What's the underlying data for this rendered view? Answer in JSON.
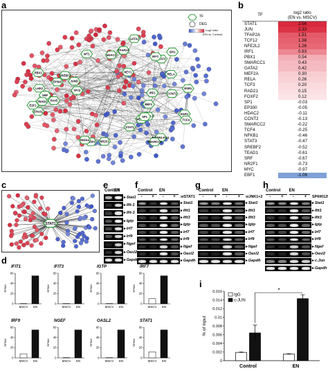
{
  "panels": {
    "a": "a",
    "b": "b",
    "c": "c",
    "d": "d",
    "e": "e",
    "f": "f",
    "g": "g",
    "h": "h",
    "i": "i"
  },
  "network_legend": {
    "tf": "TF",
    "deg": "DEG",
    "ratio_label_1": "Log2 ratio",
    "ratio_label_2": "(EN vs. Control)"
  },
  "network_a_labels": [
    "TP73",
    "EWSR1-FLI1",
    "NFE2L2",
    "PBX1",
    "EPAS1",
    "RELA",
    "IRF1",
    "E2F1",
    "STAT3",
    "LHX2",
    "FOXA1",
    "EGR1",
    "MEF2A",
    "SRF",
    "CCNT2",
    "ESR1",
    "GATA2",
    "WT1",
    "MYC",
    "TFAP2A",
    "TCF4",
    "SP1",
    "STAT1",
    "HEY1",
    "EP300",
    "JUND",
    "EBF1",
    "HDAC2",
    "NR2F1",
    "SREBF2",
    "PAX5",
    "SMARCC1",
    "FOXF2",
    "TEAD1",
    "SPI1",
    "HNF4A"
  ],
  "network_c_center": "STAT1",
  "table_b": {
    "col_tf": "TF",
    "col_ratio": "log2 ratio",
    "col_ratio_sub": "(EN vs. MSCV)",
    "rows": [
      {
        "tf": "STAT1",
        "v": "2.56",
        "c": "#d9293e"
      },
      {
        "tf": "JUN",
        "v": "2.33",
        "c": "#dc3447"
      },
      {
        "tf": "TFAP2A",
        "v": "1.51",
        "c": "#e55a69"
      },
      {
        "tf": "TCF12",
        "v": "1.38",
        "c": "#e6616f"
      },
      {
        "tf": "NFE2L2",
        "v": "1.26",
        "c": "#e86876"
      },
      {
        "tf": "IRF1",
        "v": "0.93",
        "c": "#ed8792"
      },
      {
        "tf": "PBX1",
        "v": "0.54",
        "c": "#f3aeb6"
      },
      {
        "tf": "SMARCC1",
        "v": "0.43",
        "c": "#f5bac1"
      },
      {
        "tf": "GATA2",
        "v": "0.42",
        "c": "#f5bbc2"
      },
      {
        "tf": "MEF2A",
        "v": "0.30",
        "c": "#f8cdd2"
      },
      {
        "tf": "RELA",
        "v": "0.26",
        "c": "#f9d2d6"
      },
      {
        "tf": "TCF3",
        "v": "0.20",
        "c": "#fadadd"
      },
      {
        "tf": "RAD21",
        "v": "0.15",
        "c": "#fbe0e3"
      },
      {
        "tf": "FOXF2",
        "v": "0.12",
        "c": "#fce5e7"
      },
      {
        "tf": "SP1",
        "v": "-0.03",
        "c": "#ffffff"
      },
      {
        "tf": "EP300",
        "v": "-0.05",
        "c": "#ffffff"
      },
      {
        "tf": "HDAC2",
        "v": "-0.11",
        "c": "#ffffff"
      },
      {
        "tf": "CCNT2",
        "v": "-0.13",
        "c": "#ffffff"
      },
      {
        "tf": "SMARCC2",
        "v": "-0.22",
        "c": "#ffffff"
      },
      {
        "tf": "TCF4",
        "v": "-0.25",
        "c": "#ffffff"
      },
      {
        "tf": "NFKB1",
        "v": "-0.46",
        "c": "#ffffff"
      },
      {
        "tf": "STAT3",
        "v": "-0.47",
        "c": "#ffffff"
      },
      {
        "tf": "SREBF2",
        "v": "-0.52",
        "c": "#ffffff"
      },
      {
        "tf": "TEAD1",
        "v": "-0.61",
        "c": "#ffffff"
      },
      {
        "tf": "SRF",
        "v": "-0.67",
        "c": "#ffffff"
      },
      {
        "tf": "NR2F1",
        "v": "-0.73",
        "c": "#ffffff"
      },
      {
        "tf": "MYC",
        "v": "-0.97",
        "c": "#ffffff"
      },
      {
        "tf": "EBF1",
        "v": "-1.06",
        "c": "#7fa1d6"
      }
    ]
  },
  "gel_e": {
    "headers": [
      "Control",
      "EN"
    ],
    "genes": [
      "Stat1",
      "Ifit-1",
      "Ifit-3",
      "Igtp",
      "Irf7",
      "Irf9",
      "Ngef",
      "Oasl2",
      "Gapdh"
    ],
    "lanes": 2,
    "intensity": [
      [
        0.7,
        0.95
      ],
      [
        0.15,
        0.85
      ],
      [
        0.2,
        0.9
      ],
      [
        0.3,
        0.95
      ],
      [
        0.25,
        0.9
      ],
      [
        0.3,
        0.85
      ],
      [
        0.1,
        0.8
      ],
      [
        0.15,
        0.85
      ],
      [
        0.9,
        0.9
      ]
    ]
  },
  "gel_f": {
    "headers": [
      "Control",
      "EN"
    ],
    "treatment": "siSTAT1",
    "signs": [
      "-",
      "+",
      "-",
      "+"
    ],
    "genes": [
      "Stat1",
      "Ifit1",
      "Ifit3",
      "Igtp",
      "Irf7",
      "Irf9",
      "Ngef",
      "Oasl2",
      "Gapdh"
    ],
    "lanes": 4,
    "intensity": [
      [
        0.6,
        0.2,
        0.95,
        0.35
      ],
      [
        0.2,
        0.15,
        0.9,
        0.3
      ],
      [
        0.2,
        0.15,
        0.9,
        0.35
      ],
      [
        0.3,
        0.2,
        0.95,
        0.4
      ],
      [
        0.25,
        0.2,
        0.9,
        0.35
      ],
      [
        0.3,
        0.25,
        0.9,
        0.4
      ],
      [
        0.15,
        0.1,
        0.85,
        0.3
      ],
      [
        0.15,
        0.1,
        0.9,
        0.3
      ],
      [
        0.9,
        0.9,
        0.9,
        0.9
      ]
    ]
  },
  "gel_g": {
    "headers": [
      "Control",
      "EN"
    ],
    "treatment": "siJNK1+2",
    "signs": [
      "-",
      "+",
      "-",
      "+"
    ],
    "genes": [
      "Stat1",
      "Ifit1",
      "Ifit3",
      "Igtp",
      "Irf7",
      "Irf9",
      "Ngef",
      "Oasl2",
      "Gapdh"
    ],
    "lanes": 4,
    "intensity": [
      [
        0.6,
        0.5,
        0.95,
        0.45
      ],
      [
        0.2,
        0.15,
        0.9,
        0.3
      ],
      [
        0.2,
        0.15,
        0.85,
        0.3
      ],
      [
        0.35,
        0.3,
        0.95,
        0.4
      ],
      [
        0.25,
        0.2,
        0.9,
        0.35
      ],
      [
        0.3,
        0.25,
        0.85,
        0.35
      ],
      [
        0.15,
        0.1,
        0.85,
        0.3
      ],
      [
        0.15,
        0.1,
        0.9,
        0.35
      ],
      [
        0.9,
        0.9,
        0.9,
        0.9
      ]
    ]
  },
  "gel_h": {
    "headers": [
      "Control",
      "EN"
    ],
    "treatment": "SP600125",
    "signs": [
      "-",
      "+",
      "-",
      "+"
    ],
    "genes": [
      "Stat1",
      "Ifit1",
      "Ifit3",
      "Igtp",
      "Irf7",
      "Irf9",
      "Ngef",
      "Oasl2",
      "c.Jun",
      "Gapdh"
    ],
    "lanes": 4,
    "intensity": [
      [
        0.6,
        0.55,
        0.95,
        0.5
      ],
      [
        0.2,
        0.15,
        0.9,
        0.3
      ],
      [
        0.2,
        0.15,
        0.9,
        0.35
      ],
      [
        0.35,
        0.3,
        0.95,
        0.4
      ],
      [
        0.3,
        0.25,
        0.9,
        0.4
      ],
      [
        0.3,
        0.25,
        0.9,
        0.4
      ],
      [
        0.15,
        0.1,
        0.8,
        0.3
      ],
      [
        0.15,
        0.1,
        0.85,
        0.3
      ],
      [
        0.5,
        0.5,
        0.85,
        0.8
      ],
      [
        0.9,
        0.9,
        0.9,
        0.9
      ]
    ]
  },
  "chart_data": [
    {
      "type": "bar",
      "title": "IFIT1",
      "categories": [
        "MSCV",
        "EN"
      ],
      "values": [
        0.5,
        55
      ],
      "ylabel": "RPKM",
      "ylim": [
        0,
        60
      ],
      "yticks": [
        "0",
        "20",
        "40",
        "60"
      ]
    },
    {
      "type": "bar",
      "title": "IFIT3",
      "categories": [
        "MSCV",
        "EN"
      ],
      "values": [
        0.5,
        55
      ],
      "ylabel": "RPKM",
      "ylim": [
        0,
        60
      ],
      "yticks": [
        "0",
        "20",
        "40",
        "60"
      ]
    },
    {
      "type": "bar",
      "title": "IGTP",
      "categories": [
        "MSCV",
        "EN"
      ],
      "values": [
        0.5,
        55
      ],
      "ylabel": "RPKM",
      "ylim": [
        0,
        60
      ],
      "yticks": [
        "0",
        "20",
        "40",
        "60"
      ]
    },
    {
      "type": "bar",
      "title": "IRF7",
      "categories": [
        "MSCV",
        "EN"
      ],
      "values": [
        10,
        55
      ],
      "ylabel": "RPKM",
      "ylim": [
        0,
        60
      ],
      "yticks": [
        "0",
        "20",
        "40",
        "60"
      ]
    },
    {
      "type": "bar",
      "title": "IRF9",
      "categories": [
        "MSCV",
        "EN"
      ],
      "values": [
        8,
        55
      ],
      "ylabel": "RPKM",
      "ylim": [
        0,
        60
      ],
      "yticks": [
        "0",
        "20",
        "40",
        "60"
      ]
    },
    {
      "type": "bar",
      "title": "NGEF",
      "categories": [
        "MSCV",
        "EN"
      ],
      "values": [
        0.5,
        55
      ],
      "ylabel": "RPKM",
      "ylim": [
        0,
        60
      ],
      "yticks": [
        "0",
        "20",
        "40",
        "60"
      ]
    },
    {
      "type": "bar",
      "title": "OASL2",
      "categories": [
        "MSCV",
        "EN"
      ],
      "values": [
        0.5,
        55
      ],
      "ylabel": "RPKM",
      "ylim": [
        0,
        60
      ],
      "yticks": [
        "0",
        "20",
        "40",
        "60"
      ]
    },
    {
      "type": "bar",
      "title": "STAT1",
      "categories": [
        "MSCV",
        "EN"
      ],
      "values": [
        12,
        55
      ],
      "ylabel": "RPKM",
      "ylim": [
        0,
        60
      ],
      "yticks": [
        "0",
        "20",
        "40",
        "60"
      ]
    },
    {
      "type": "bar",
      "categories": [
        "Control",
        "EN"
      ],
      "series": [
        {
          "name": "IgG",
          "values": [
            0.0019,
            0.0015
          ],
          "errors": [
            0.0001,
            0.0001
          ],
          "color": "#ffffff"
        },
        {
          "name": "c-JUN",
          "values": [
            0.0064,
            0.0143
          ],
          "errors": [
            0.0018,
            0.0009
          ],
          "color": "#111111"
        }
      ],
      "ylabel": "% of input",
      "ylim": [
        0,
        0.016
      ],
      "yticks": [
        "0",
        "0.002",
        "0.004",
        "0.006",
        "0.008",
        "0.01",
        "0.012",
        "0.014",
        "0.016"
      ],
      "annotation": "*"
    }
  ]
}
